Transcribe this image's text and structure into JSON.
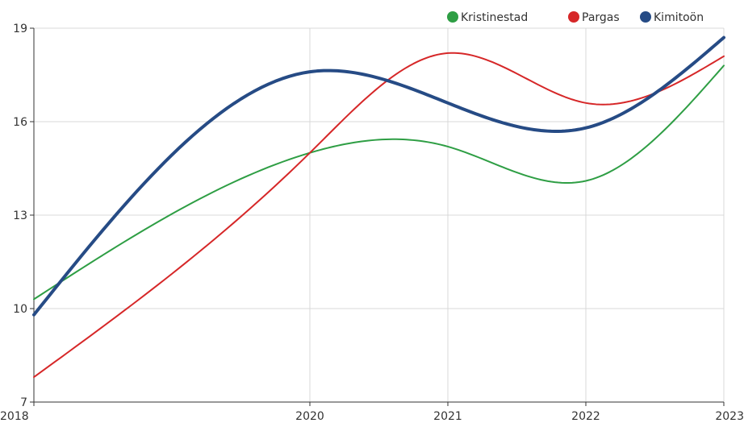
{
  "chart_data": {
    "type": "line",
    "x": [
      2018,
      2020,
      2021,
      2022,
      2023
    ],
    "x_tick_labels": [
      "2018",
      "2020",
      "2021",
      "2022",
      "2023"
    ],
    "xlim": [
      2018,
      2023
    ],
    "ylim": [
      7,
      19
    ],
    "y_ticks": [
      7,
      10,
      13,
      16,
      19
    ],
    "y_tick_labels": [
      "7",
      "10",
      "13",
      "16",
      "19"
    ],
    "grid": true,
    "legend_position": "top-right",
    "series": [
      {
        "name": "Kristinestad",
        "color": "#2e9e44",
        "values": [
          10.3,
          15.0,
          15.2,
          14.1,
          17.8
        ],
        "line_width": 2
      },
      {
        "name": "Pargas",
        "color": "#d62728",
        "values": [
          7.8,
          15.0,
          18.2,
          16.6,
          18.1
        ],
        "line_width": 2
      },
      {
        "name": "Kimitoön",
        "color": "#264b85",
        "values": [
          9.8,
          17.6,
          16.6,
          15.8,
          18.7
        ],
        "line_width": 4
      }
    ]
  }
}
